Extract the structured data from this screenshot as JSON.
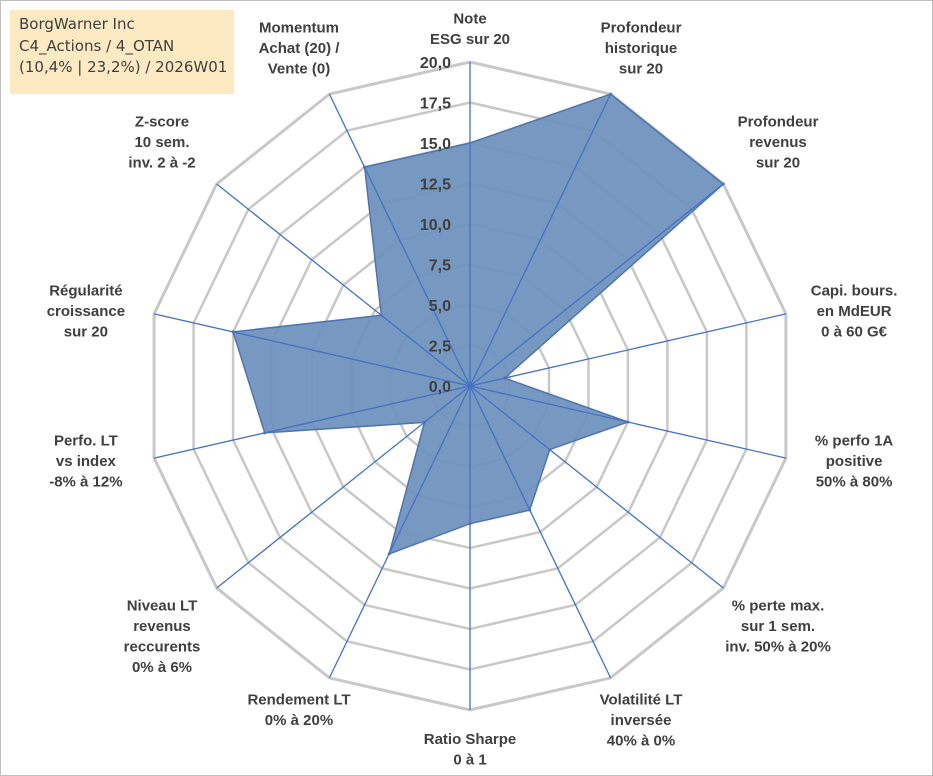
{
  "info_box": {
    "company": "BorgWarner Inc",
    "portfolio": "C4_Actions / 4_OTAN",
    "stats": "(10,4% | 23,2%) / 2026W01"
  },
  "colors": {
    "fill": "#7092be",
    "stroke": "#4f75b0",
    "spokes": "#4472c4",
    "grid": "#c8c8c8",
    "text": "#404040",
    "info_background": "#fde9c2"
  },
  "chart_data": {
    "type": "radar",
    "title": "",
    "scale": {
      "min": 0,
      "max": 20,
      "step": 2.5
    },
    "tick_labels": [
      "0,0",
      "2,5",
      "5,0",
      "7,5",
      "10,0",
      "12,5",
      "15,0",
      "17,5",
      "20,0"
    ],
    "grid": true,
    "legend": "none",
    "axes": [
      {
        "label": [
          "Note",
          "ESG sur 20"
        ],
        "value": 15.0
      },
      {
        "label": [
          "Profondeur",
          "historique",
          "sur 20"
        ],
        "value": 20.0
      },
      {
        "label": [
          "Profondeur",
          "revenus",
          "sur 20"
        ],
        "value": 20.0
      },
      {
        "label": [
          "Capi. bours.",
          "en MdEUR",
          "0 à 60 G€"
        ],
        "value": 2.2
      },
      {
        "label": [
          "% perfo 1A",
          "positive",
          "50% à 80%"
        ],
        "value": 10.0
      },
      {
        "label": [
          "% perte max.",
          "sur 1 sem.",
          "inv. 50% à 20%"
        ],
        "value": 6.3
      },
      {
        "label": [
          "Volatilité LT",
          "inversée",
          "40% à 0%"
        ],
        "value": 8.5
      },
      {
        "label": [
          "Ratio Sharpe",
          "0 à 1"
        ],
        "value": 8.5
      },
      {
        "label": [
          "Rendement LT",
          "0% à 20%"
        ],
        "value": 11.5
      },
      {
        "label": [
          "Niveau LT",
          "revenus",
          "reccurents",
          "0% à 6%"
        ],
        "value": 3.6
      },
      {
        "label": [
          "Perfo. LT",
          "vs index",
          "-8% à 12%"
        ],
        "value": 13.0
      },
      {
        "label": [
          "Régularité",
          "croissance",
          "sur 20"
        ],
        "value": 15.0
      },
      {
        "label": [
          "Z-score",
          "10 sem.",
          "inv. 2 à -2"
        ],
        "value": 7.0
      },
      {
        "label": [
          "Momentum",
          "Achat (20) /",
          "Vente (0)"
        ],
        "value": 15.0
      }
    ]
  }
}
